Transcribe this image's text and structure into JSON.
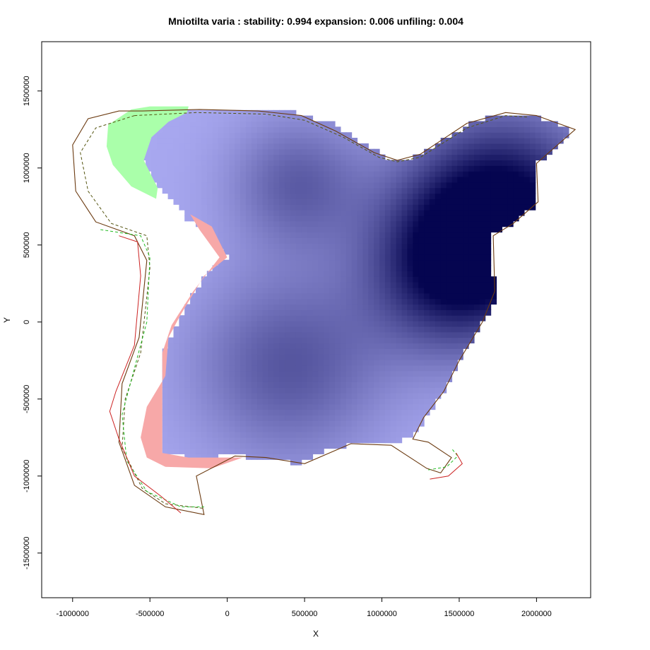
{
  "chart_data": {
    "type": "heatmap",
    "title": "Mniotilta varia : stability: 0.994 expansion: 0.006 unfiling: 0.004",
    "xlabel": "X",
    "ylabel": "Y",
    "xlim": [
      -1200000,
      2350000
    ],
    "ylim": [
      -1790000,
      1820000
    ],
    "xticks": [
      -1000000,
      -500000,
      0,
      500000,
      1000000,
      1500000,
      2000000
    ],
    "xtick_labels": [
      "-1000000",
      "-500000",
      "0",
      "500000",
      "1000000",
      "1500000",
      "2000000"
    ],
    "yticks": [
      -1500000,
      -1000000,
      -500000,
      0,
      500000,
      1000000,
      1500000
    ],
    "ytick_labels": [
      "-1500000",
      "-1000000",
      "-500000",
      "0",
      "500000",
      "1000000",
      "1500000"
    ],
    "grid": false,
    "colors": {
      "stability_high": "#050550",
      "stability_low": "#a8a8f0",
      "expansion": "#aaffaa",
      "unfilling": "#f7a8a8",
      "contour_brown": "#6b3a10",
      "contour_red": "#cc2222",
      "contour_green": "#22bb22",
      "contour_darkbrown": "#555511"
    },
    "regions": {
      "stability": [
        [
          -450000,
          1360000
        ],
        [
          -250000,
          1370000
        ],
        [
          100000,
          1370000
        ],
        [
          450000,
          1360000
        ],
        [
          700000,
          1280000
        ],
        [
          900000,
          1150000
        ],
        [
          1050000,
          1060000
        ],
        [
          1150000,
          1050000
        ],
        [
          1350000,
          1150000
        ],
        [
          1600000,
          1310000
        ],
        [
          1850000,
          1360000
        ],
        [
          2000000,
          1330000
        ],
        [
          2200000,
          1260000
        ],
        [
          2190000,
          1180000
        ],
        [
          1990000,
          1020000
        ],
        [
          2000000,
          760000
        ],
        [
          1850000,
          640000
        ],
        [
          1700000,
          560000
        ],
        [
          1700000,
          380000
        ],
        [
          1760000,
          200000
        ],
        [
          1660000,
          10000
        ],
        [
          1500000,
          -250000
        ],
        [
          1400000,
          -450000
        ],
        [
          1300000,
          -600000
        ],
        [
          1200000,
          -750000
        ],
        [
          1050000,
          -780000
        ],
        [
          800000,
          -790000
        ],
        [
          600000,
          -840000
        ],
        [
          450000,
          -920000
        ],
        [
          250000,
          -880000
        ],
        [
          50000,
          -870000
        ],
        [
          -250000,
          -880000
        ],
        [
          -420000,
          -850000
        ],
        [
          -420000,
          -650000
        ],
        [
          -420000,
          -200000
        ],
        [
          -300000,
          50000
        ],
        [
          -150000,
          300000
        ],
        [
          0,
          420000
        ],
        [
          -100000,
          560000
        ],
        [
          -250000,
          660000
        ],
        [
          -330000,
          760000
        ],
        [
          -480000,
          900000
        ],
        [
          -560000,
          1100000
        ],
        [
          -560000,
          1250000
        ]
      ],
      "expansion": [
        [
          -500000,
          1400000
        ],
        [
          -250000,
          1400000
        ],
        [
          -260000,
          1360000
        ],
        [
          -380000,
          1300000
        ],
        [
          -490000,
          1200000
        ],
        [
          -540000,
          1050000
        ],
        [
          -450000,
          870000
        ],
        [
          -460000,
          800000
        ],
        [
          -620000,
          880000
        ],
        [
          -740000,
          1020000
        ],
        [
          -780000,
          1140000
        ],
        [
          -770000,
          1280000
        ],
        [
          -620000,
          1380000
        ]
      ],
      "unfilling": [
        [
          -100000,
          620000
        ],
        [
          0,
          420000
        ],
        [
          -150000,
          300000
        ],
        [
          -300000,
          50000
        ],
        [
          -380000,
          -100000
        ],
        [
          -400000,
          -350000
        ],
        [
          -520000,
          -550000
        ],
        [
          -560000,
          -750000
        ],
        [
          -520000,
          -880000
        ],
        [
          -400000,
          -940000
        ],
        [
          -100000,
          -950000
        ],
        [
          100000,
          -880000
        ],
        [
          -250000,
          -880000
        ],
        [
          -420000,
          -850000
        ],
        [
          -420000,
          -200000
        ],
        [
          -360000,
          -20000
        ],
        [
          -220000,
          200000
        ],
        [
          -50000,
          420000
        ],
        [
          -180000,
          600000
        ],
        [
          -240000,
          700000
        ]
      ]
    },
    "density_centers": [
      {
        "x": 1800000,
        "y": 750000,
        "intensity": 1.0,
        "spread": 420000
      },
      {
        "x": 1450000,
        "y": 350000,
        "intensity": 0.9,
        "spread": 380000
      },
      {
        "x": 450000,
        "y": 900000,
        "intensity": 0.45,
        "spread": 300000
      },
      {
        "x": 400000,
        "y": -280000,
        "intensity": 0.5,
        "spread": 420000
      }
    ]
  }
}
